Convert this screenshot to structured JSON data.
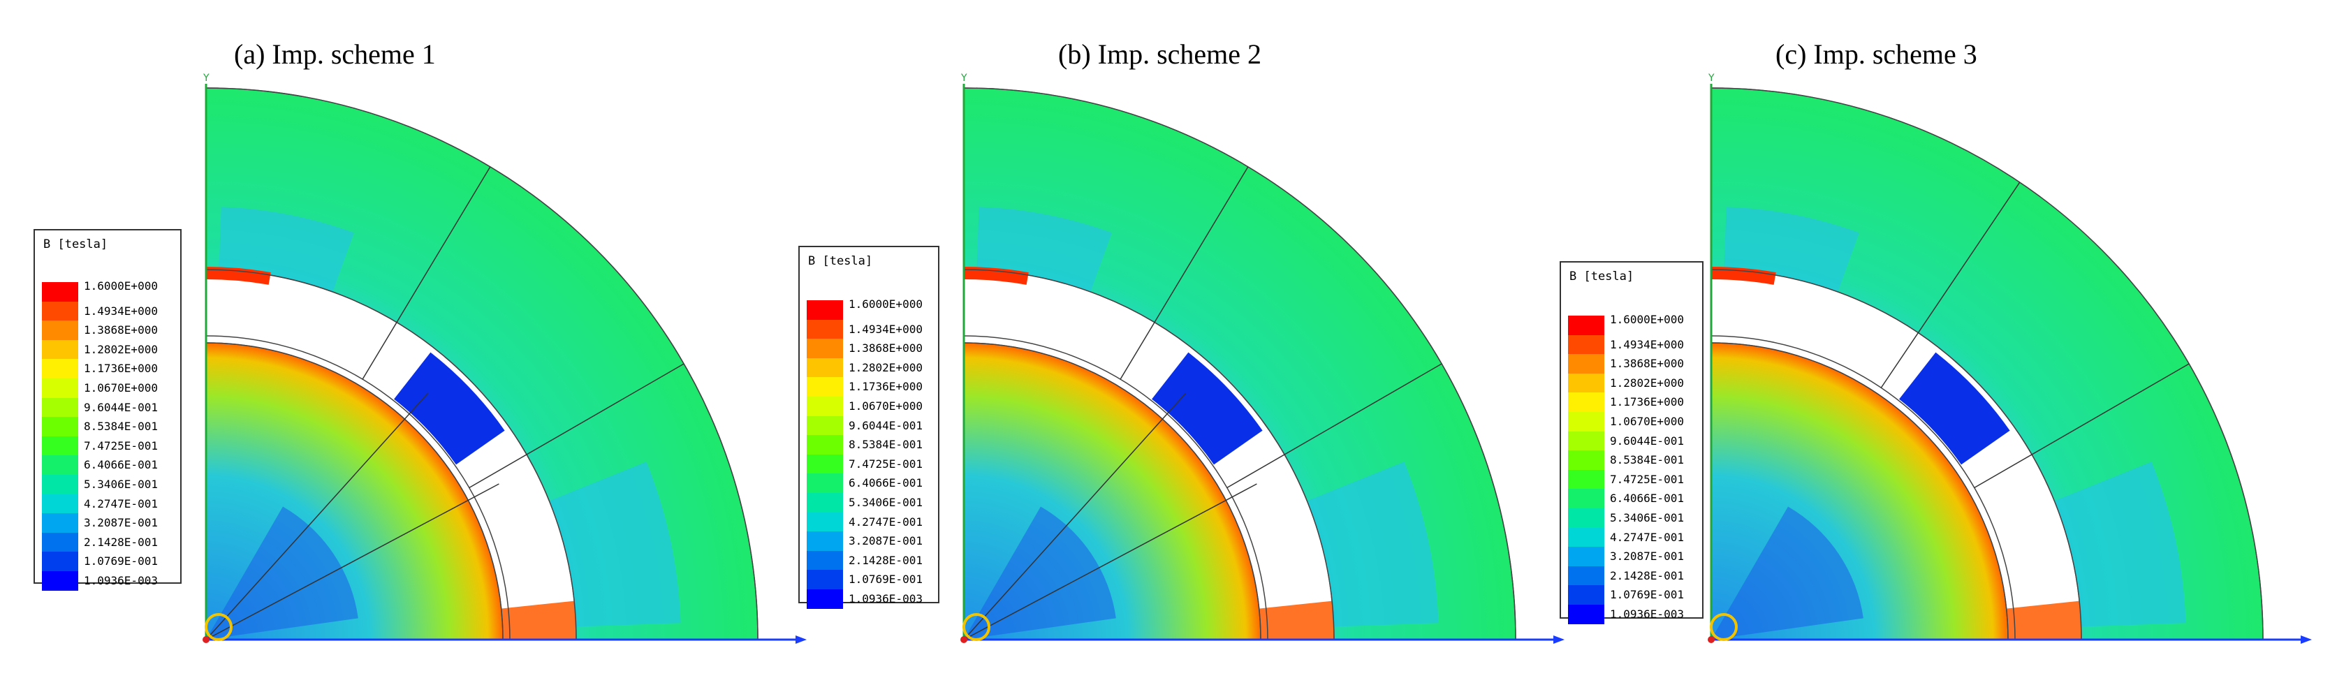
{
  "panels": [
    {
      "title": "(a) Imp. scheme 1",
      "axis_y": "Y"
    },
    {
      "title": "(b) Imp. scheme 2",
      "axis_y": "Y"
    },
    {
      "title": "(c) Imp. scheme 3",
      "axis_y": "Y"
    }
  ],
  "legend": {
    "title": "B [tesla]",
    "values": [
      "1.6000E+000",
      "1.4934E+000",
      "1.3868E+000",
      "1.2802E+000",
      "1.1736E+000",
      "1.0670E+000",
      "9.6044E-001",
      "8.5384E-001",
      "7.4725E-001",
      "6.4066E-001",
      "5.3406E-001",
      "4.2747E-001",
      "3.2087E-001",
      "2.1428E-001",
      "1.0769E-001",
      "1.0936E-003"
    ],
    "colors": [
      "#ff0000",
      "#ff4a00",
      "#ff8a00",
      "#ffc400",
      "#ffef00",
      "#d8ff00",
      "#a6ff00",
      "#6cff00",
      "#35ff1e",
      "#14f06a",
      "#00e6a6",
      "#00d6d6",
      "#00a6ef",
      "#0072ee",
      "#003fee",
      "#0000ff"
    ]
  },
  "colors": {
    "outer_stator": "#1ee86c",
    "stator_inner": "#2ee07e",
    "tooth_band": "#22c8e0",
    "rotor_ring": "#f2c400",
    "rotor_core": "#27b9e0",
    "magnet_blue": "#0a2fe8",
    "axis_blue": "#1a3cff",
    "axis_red": "#e02020"
  }
}
